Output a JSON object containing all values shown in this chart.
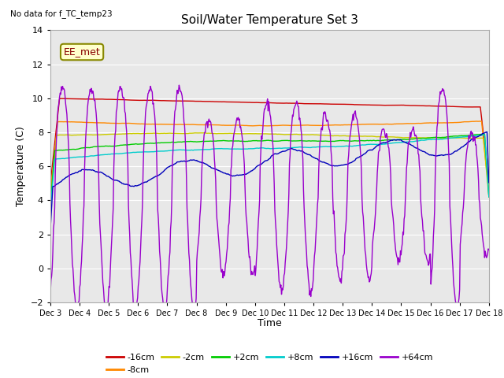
{
  "title": "Soil/Water Temperature Set 3",
  "ylabel": "Temperature (C)",
  "xlabel": "Time",
  "top_left_text": "No data for f_TC_temp23",
  "annotation_box": "EE_met",
  "ylim": [
    -2,
    14
  ],
  "yticks": [
    -2,
    0,
    2,
    4,
    6,
    8,
    10,
    12,
    14
  ],
  "fig_bg_color": "#ffffff",
  "plot_bg_color": "#e8e8e8",
  "grid_color": "#ffffff",
  "colors": {
    "m16cm": "#cc0000",
    "m8cm": "#ff8800",
    "m2cm": "#cccc00",
    "p2cm": "#00cc00",
    "p8cm": "#00cccc",
    "p16cm": "#0000bb",
    "p64cm": "#9900cc"
  },
  "labels": [
    "-16cm",
    "-8cm",
    "-2cm",
    "+2cm",
    "+8cm",
    "+16cm",
    "+64cm"
  ],
  "n_points": 720,
  "xtick_positions": [
    0,
    24,
    48,
    72,
    96,
    120,
    144,
    168,
    192,
    216,
    240,
    264,
    288,
    312,
    336,
    360
  ],
  "xtick_labels": [
    "Dec 3",
    "Dec 4",
    "Dec 5",
    "Dec 6",
    "Dec 7",
    "Dec 8",
    "Dec 9",
    "Dec 10",
    "Dec 11",
    "Dec 12",
    "Dec 13",
    "Dec 14",
    "Dec 15",
    "Dec 16",
    "Dec 17",
    "Dec 18"
  ]
}
